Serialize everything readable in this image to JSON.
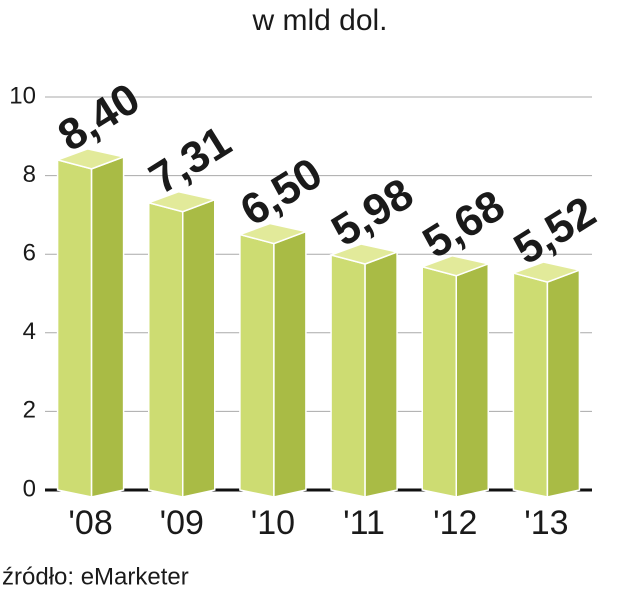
{
  "chart_data": {
    "type": "bar",
    "title": "w mld dol.",
    "categories": [
      "'08",
      "'09",
      "'10",
      "'11",
      "'12",
      "'13"
    ],
    "values": [
      8.4,
      7.31,
      6.5,
      5.98,
      5.68,
      5.52
    ],
    "value_labels": [
      "8,40",
      "7,31",
      "6,50",
      "5,98",
      "5,68",
      "5,52"
    ],
    "color": "#c5d66a",
    "ylim": [
      0,
      10
    ],
    "yticks": [
      0,
      2,
      4,
      6,
      8,
      10
    ],
    "grid": true,
    "source": "źródło: eMarketer"
  }
}
